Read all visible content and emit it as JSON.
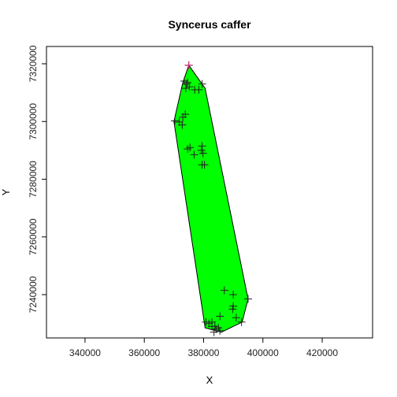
{
  "chart_data": {
    "type": "scatter",
    "title": "Syncerus caffer",
    "xlabel": "X",
    "ylabel": "Y",
    "xlim": [
      327000,
      437000
    ],
    "ylim": [
      7225000,
      7326000
    ],
    "x_ticks": [
      340000,
      360000,
      380000,
      400000,
      420000
    ],
    "y_ticks": [
      7240000,
      7260000,
      7280000,
      7300000,
      7320000
    ],
    "x_tick_labels": [
      "340000",
      "360000",
      "380000",
      "400000",
      "420000"
    ],
    "y_tick_labels": [
      "7240000",
      "7260000",
      "7280000",
      "7300000",
      "7320000"
    ],
    "hull_color": "#00ff00",
    "highlight_color": "#cc3377",
    "hull": [
      [
        375000,
        7319500
      ],
      [
        380500,
        7311500
      ],
      [
        395000,
        7238500
      ],
      [
        393000,
        7230500
      ],
      [
        386000,
        7227000
      ],
      [
        380500,
        7228500
      ],
      [
        370000,
        7300000
      ],
      [
        373000,
        7313500
      ]
    ],
    "points": [
      [
        375000,
        7319500
      ],
      [
        373500,
        7314000
      ],
      [
        374200,
        7313000
      ],
      [
        374600,
        7313500
      ],
      [
        374000,
        7311500
      ],
      [
        375200,
        7312000
      ],
      [
        377000,
        7311000
      ],
      [
        378400,
        7311000
      ],
      [
        379500,
        7313000
      ],
      [
        373800,
        7302500
      ],
      [
        373000,
        7301500
      ],
      [
        370300,
        7300200
      ],
      [
        371800,
        7299800
      ],
      [
        372800,
        7298800
      ],
      [
        374600,
        7290500
      ],
      [
        375400,
        7291000
      ],
      [
        376800,
        7288500
      ],
      [
        379500,
        7291500
      ],
      [
        379300,
        7290000
      ],
      [
        379800,
        7289000
      ],
      [
        379500,
        7285000
      ],
      [
        380300,
        7285000
      ],
      [
        387000,
        7241500
      ],
      [
        390000,
        7240000
      ],
      [
        395000,
        7238500
      ],
      [
        390000,
        7236000
      ],
      [
        389800,
        7235000
      ],
      [
        391000,
        7232000
      ],
      [
        392800,
        7230500
      ],
      [
        385500,
        7232500
      ],
      [
        380800,
        7230500
      ],
      [
        381800,
        7230000
      ],
      [
        382800,
        7230500
      ],
      [
        382800,
        7229000
      ],
      [
        383800,
        7229000
      ],
      [
        384200,
        7228000
      ],
      [
        385000,
        7228500
      ],
      [
        385500,
        7227500
      ],
      [
        383500,
        7227000
      ]
    ],
    "highlight_points": [
      [
        375000,
        7319500
      ]
    ]
  }
}
